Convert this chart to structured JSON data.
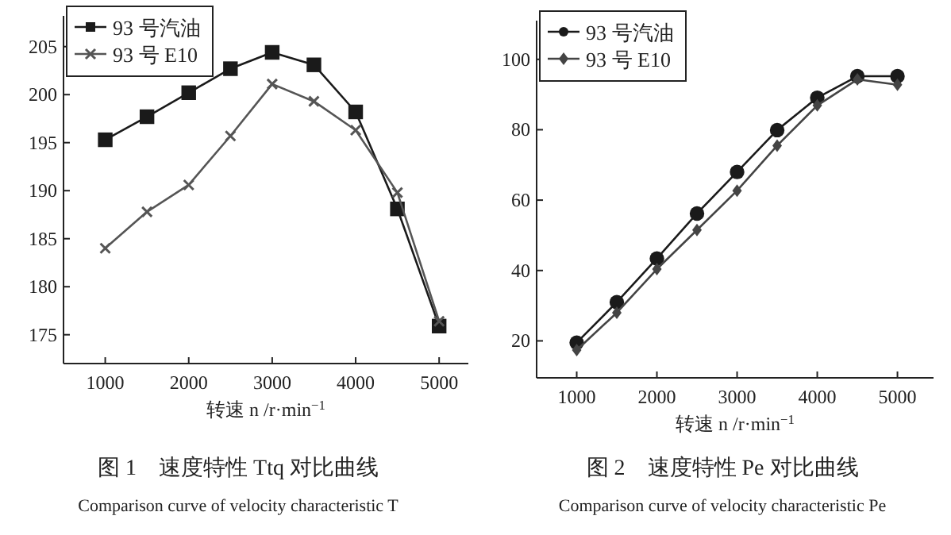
{
  "chart_data": [
    {
      "type": "line",
      "title": "图 1　速度特性 Ttq 对比曲线",
      "xlabel": "转速 n /r·min$^{−1}$",
      "annotations": [
        "Comparison curve of velocity characteristic T"
      ],
      "x": [
        1000,
        1500,
        2000,
        2500,
        3000,
        3500,
        4000,
        4500,
        5000
      ],
      "xlim": [
        500,
        5350
      ],
      "xticks": [
        1000,
        2000,
        3000,
        4000,
        5000
      ],
      "ylim": [
        172,
        208.2
      ],
      "yticks": [
        175,
        180,
        185,
        190,
        195,
        200,
        205
      ],
      "legend": "top left",
      "grid": false,
      "series": [
        {
          "name": "93 号汽油",
          "color": "#1a1a1a",
          "marker": "square",
          "values": [
            195.3,
            197.7,
            200.2,
            202.7,
            204.4,
            203.1,
            198.2,
            188.1,
            175.9
          ]
        },
        {
          "name": "93 号 E10",
          "color": "#555555",
          "marker": "cross",
          "values": [
            184.0,
            187.8,
            190.6,
            195.7,
            201.1,
            199.3,
            196.3,
            189.8,
            176.4
          ]
        }
      ]
    },
    {
      "type": "line",
      "title": "图 2　速度特性 Pe 对比曲线",
      "xlabel": "转速 n /r·min$^{−1}$",
      "annotations": [
        "Comparison curve of velocity characteristic Pe"
      ],
      "x": [
        1000,
        1500,
        2000,
        2500,
        3000,
        3500,
        4000,
        4500,
        5000
      ],
      "xlim": [
        500,
        5450
      ],
      "xticks": [
        1000,
        2000,
        3000,
        4000,
        5000
      ],
      "ylim": [
        9.5,
        111
      ],
      "yticks": [
        20,
        40,
        60,
        80,
        100
      ],
      "legend": "top left",
      "grid": false,
      "series": [
        {
          "name": "93 号汽油",
          "color": "#1a1a1a",
          "marker": "circle",
          "values": [
            19.5,
            31.0,
            43.4,
            56.2,
            68.0,
            79.9,
            89.1,
            95.2,
            95.2
          ]
        },
        {
          "name": "93 号 E10",
          "color": "#444444",
          "marker": "diamond",
          "values": [
            17.4,
            28.0,
            40.4,
            51.5,
            62.7,
            75.5,
            86.9,
            94.3,
            92.8
          ]
        }
      ]
    }
  ]
}
